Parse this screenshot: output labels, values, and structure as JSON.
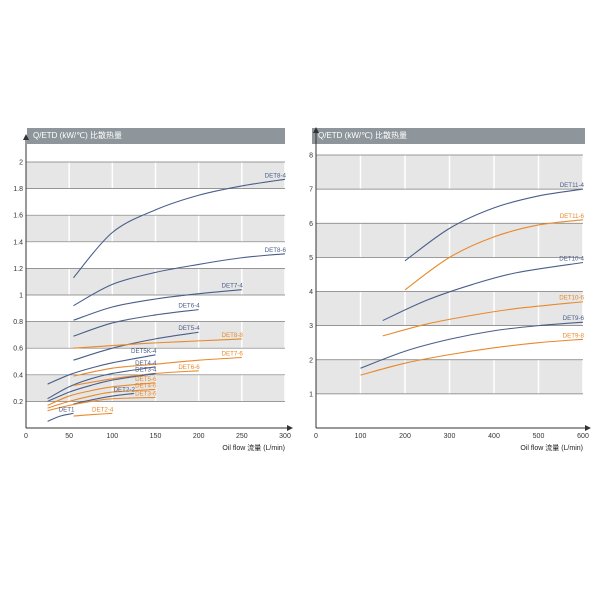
{
  "chart_data": [
    {
      "type": "line",
      "title": "Q/ETD (kW/℃)  比散热量",
      "xlabel": "Oil flow 流量 (L/min)",
      "ylabel": "Q/ETD (kW/℃)",
      "xlim": [
        0,
        300
      ],
      "ylim": [
        0,
        2
      ],
      "xticks": [
        "0",
        "50",
        "100",
        "150",
        "200",
        "250",
        "300"
      ],
      "yticks": [
        "0.2",
        "0.4",
        "0.6",
        "0.8",
        "1",
        "1.2",
        "1.4",
        "1.6",
        "1.8",
        "2"
      ],
      "colors": {
        "blue": "#4a5e8a",
        "orange": "#e8892b"
      },
      "series": [
        {
          "name": "DET8-4",
          "color": "blue",
          "x": [
            55,
            100,
            150,
            200,
            250,
            300
          ],
          "y": [
            1.13,
            1.47,
            1.64,
            1.75,
            1.82,
            1.87
          ]
        },
        {
          "name": "DET8-6",
          "color": "blue",
          "x": [
            55,
            100,
            150,
            200,
            250,
            300
          ],
          "y": [
            0.92,
            1.08,
            1.17,
            1.23,
            1.28,
            1.31
          ]
        },
        {
          "name": "DET7-4",
          "color": "blue",
          "x": [
            55,
            100,
            150,
            200,
            250
          ],
          "y": [
            0.81,
            0.91,
            0.97,
            1.01,
            1.04
          ]
        },
        {
          "name": "DET6-4",
          "color": "blue",
          "x": [
            55,
            100,
            150,
            200
          ],
          "y": [
            0.69,
            0.79,
            0.85,
            0.89
          ]
        },
        {
          "name": "DET5-4",
          "color": "blue",
          "x": [
            55,
            100,
            150,
            200
          ],
          "y": [
            0.51,
            0.6,
            0.67,
            0.72
          ]
        },
        {
          "name": "DET8-8",
          "color": "orange",
          "x": [
            55,
            100,
            150,
            200,
            250
          ],
          "y": [
            0.6,
            0.62,
            0.64,
            0.655,
            0.67
          ]
        },
        {
          "name": "DET5K-4",
          "color": "blue",
          "x": [
            25,
            50,
            75,
            100,
            150
          ],
          "y": [
            0.33,
            0.4,
            0.45,
            0.49,
            0.55
          ]
        },
        {
          "name": "DET7-6",
          "color": "orange",
          "x": [
            55,
            100,
            150,
            200,
            250
          ],
          "y": [
            0.39,
            0.45,
            0.48,
            0.51,
            0.53
          ]
        },
        {
          "name": "DET4-4",
          "color": "blue",
          "x": [
            25,
            50,
            75,
            100,
            150
          ],
          "y": [
            0.22,
            0.31,
            0.37,
            0.41,
            0.46
          ]
        },
        {
          "name": "DET6-6",
          "color": "orange",
          "x": [
            55,
            100,
            150,
            200
          ],
          "y": [
            0.32,
            0.37,
            0.41,
            0.43
          ]
        },
        {
          "name": "DET3-4",
          "color": "blue",
          "x": [
            25,
            50,
            75,
            100,
            150
          ],
          "y": [
            0.2,
            0.27,
            0.32,
            0.36,
            0.41
          ]
        },
        {
          "name": "DET5-6",
          "color": "orange",
          "x": [
            25,
            50,
            75,
            100,
            150
          ],
          "y": [
            0.17,
            0.24,
            0.28,
            0.31,
            0.34
          ]
        },
        {
          "name": "DET4-6",
          "color": "orange",
          "x": [
            25,
            50,
            75,
            100,
            150
          ],
          "y": [
            0.15,
            0.2,
            0.24,
            0.27,
            0.29
          ]
        },
        {
          "name": "DET2-2",
          "color": "blue",
          "x": [
            55,
            75,
            100,
            125
          ],
          "y": [
            0.18,
            0.21,
            0.24,
            0.26
          ]
        },
        {
          "name": "DET3-6",
          "color": "orange",
          "x": [
            25,
            50,
            75,
            100,
            150
          ],
          "y": [
            0.13,
            0.17,
            0.2,
            0.22,
            0.23
          ]
        },
        {
          "name": "DET1",
          "color": "blue",
          "x": [
            25,
            40,
            55
          ],
          "y": [
            0.05,
            0.09,
            0.11
          ]
        },
        {
          "name": "DET2-4",
          "color": "orange",
          "x": [
            55,
            75,
            100
          ],
          "y": [
            0.09,
            0.1,
            0.11
          ]
        }
      ]
    },
    {
      "type": "line",
      "title": "Q/ETD (kW/℃)  比散热量",
      "xlabel": "Oil flow 流量 (L/min)",
      "ylabel": "Q/ETD (kW/℃)",
      "xlim": [
        0,
        600
      ],
      "ylim": [
        0,
        8
      ],
      "xticks": [
        "0",
        "100",
        "200",
        "300",
        "400",
        "500",
        "600"
      ],
      "yticks": [
        "1",
        "2",
        "3",
        "4",
        "5",
        "6",
        "7",
        "8"
      ],
      "colors": {
        "blue": "#4a5e8a",
        "orange": "#e8892b"
      },
      "series": [
        {
          "name": "DET11-4",
          "color": "blue",
          "x": [
            200,
            300,
            400,
            500,
            600
          ],
          "y": [
            4.9,
            5.85,
            6.45,
            6.8,
            7.0
          ]
        },
        {
          "name": "DET11-6",
          "color": "orange",
          "x": [
            200,
            300,
            400,
            500,
            600
          ],
          "y": [
            4.05,
            5.0,
            5.6,
            5.95,
            6.1
          ]
        },
        {
          "name": "DET10-4",
          "color": "blue",
          "x": [
            150,
            250,
            350,
            450,
            600
          ],
          "y": [
            3.15,
            3.75,
            4.2,
            4.55,
            4.85
          ]
        },
        {
          "name": "DET10-6",
          "color": "orange",
          "x": [
            150,
            250,
            350,
            450,
            600
          ],
          "y": [
            2.7,
            3.05,
            3.3,
            3.5,
            3.7
          ]
        },
        {
          "name": "DET9-6",
          "color": "blue",
          "x": [
            100,
            200,
            300,
            400,
            500,
            600
          ],
          "y": [
            1.75,
            2.25,
            2.6,
            2.85,
            3.0,
            3.1
          ]
        },
        {
          "name": "DET9-8",
          "color": "orange",
          "x": [
            100,
            200,
            300,
            400,
            500,
            600
          ],
          "y": [
            1.55,
            1.9,
            2.15,
            2.35,
            2.5,
            2.6
          ]
        }
      ]
    }
  ]
}
